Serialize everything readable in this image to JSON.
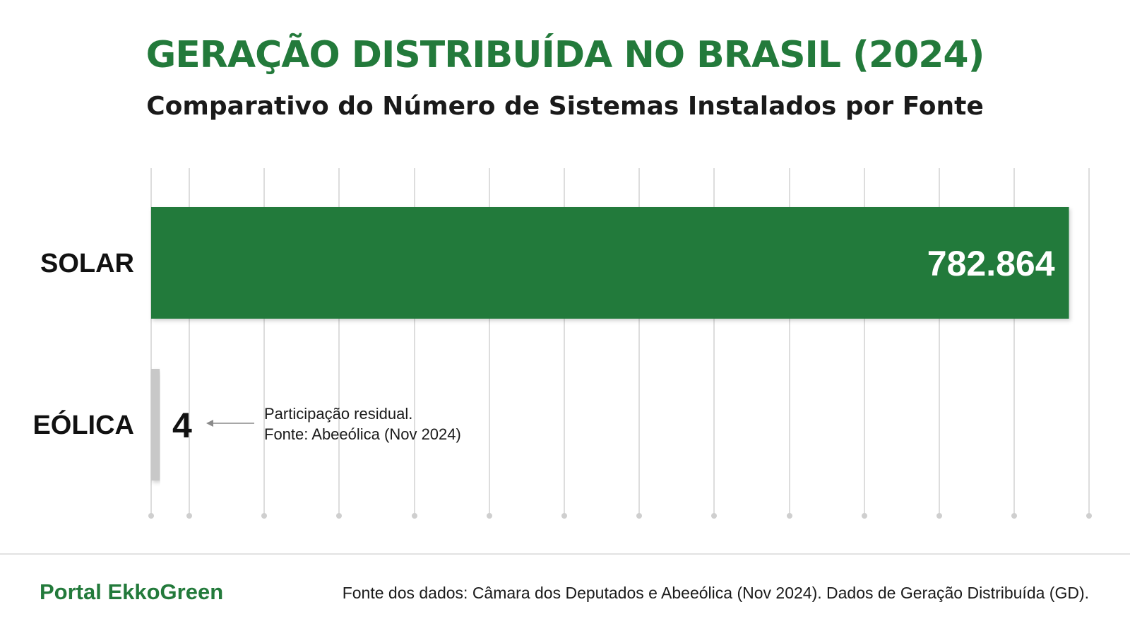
{
  "header": {
    "title": "GERAÇÃO DISTRIBUÍDA NO BRASIL (2024)",
    "subtitle": "Comparativo do Número de Sistemas Instalados por Fonte"
  },
  "chart_data": {
    "type": "bar",
    "orientation": "horizontal",
    "categories": [
      "SOLAR",
      "EÓLICA"
    ],
    "values": [
      782864,
      4
    ],
    "value_labels": [
      "782.864",
      "4"
    ],
    "title": "GERAÇÃO DISTRIBUÍDA NO BRASIL (2024)",
    "subtitle": "Comparativo do Número de Sistemas Instalados por Fonte",
    "xlabel": "",
    "ylabel": "",
    "xlim": [
      0,
      800000
    ],
    "grid": "vertical",
    "colors": [
      "#237a3b",
      "#c8c8c8"
    ],
    "annotations": [
      {
        "target": "EÓLICA",
        "lines": [
          "Participação residual.",
          "Fonte: Abeeólica (Nov 2024)"
        ]
      }
    ]
  },
  "footer": {
    "brand": "Portal EkkoGreen",
    "source": "Fonte dos dados: Câmara dos Deputados e Abeeólica (Nov 2024). Dados de Geração Distribuída (GD)."
  },
  "colors": {
    "accent": "#237a3b",
    "text": "#1a1a1a",
    "grid": "#dddddd",
    "minor_bar": "#c8c8c8"
  }
}
